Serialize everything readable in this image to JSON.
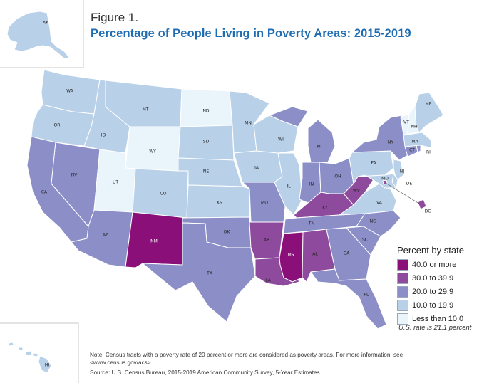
{
  "figure_label": "Figure 1.",
  "title": "Percentage of People Living in Poverty Areas: 2015-2019",
  "legend": {
    "title": "Percent by state",
    "classes": [
      {
        "label": "40.0 or more",
        "color": "#8a0f78"
      },
      {
        "label": "30.0 to  39.9",
        "color": "#8e4a9c"
      },
      {
        "label": "20.0 to  29.9",
        "color": "#8c8fc7"
      },
      {
        "label": "10.0 to  19.9",
        "color": "#b8d1e8"
      },
      {
        "label": "Less than 10.0",
        "color": "#eaf4fb"
      }
    ]
  },
  "us_rate": "U.S. rate is 21.1 percent",
  "note": "Note: Census tracts with a poverty rate of 20 percent or more are considered as poverty areas. For more information, see <www.census.gov/acs>.",
  "source": "Source: U.S. Census Bureau, 2015-2019 American Community Survey, 5-Year Estimates.",
  "states": {
    "WA": {
      "cls": 3
    },
    "OR": {
      "cls": 3
    },
    "CA": {
      "cls": 2
    },
    "NV": {
      "cls": 2
    },
    "ID": {
      "cls": 3
    },
    "MT": {
      "cls": 3
    },
    "WY": {
      "cls": 4
    },
    "UT": {
      "cls": 4
    },
    "AZ": {
      "cls": 2
    },
    "NM": {
      "cls": 0
    },
    "CO": {
      "cls": 3
    },
    "ND": {
      "cls": 4
    },
    "SD": {
      "cls": 3
    },
    "NE": {
      "cls": 3
    },
    "KS": {
      "cls": 3
    },
    "OK": {
      "cls": 2
    },
    "TX": {
      "cls": 2
    },
    "MN": {
      "cls": 3
    },
    "IA": {
      "cls": 3
    },
    "MO": {
      "cls": 2
    },
    "AR": {
      "cls": 1
    },
    "LA": {
      "cls": 1
    },
    "WI": {
      "cls": 3
    },
    "IL": {
      "cls": 3
    },
    "MI": {
      "cls": 2
    },
    "IN": {
      "cls": 2
    },
    "OH": {
      "cls": 2
    },
    "KY": {
      "cls": 1
    },
    "TN": {
      "cls": 2
    },
    "MS": {
      "cls": 0
    },
    "AL": {
      "cls": 1
    },
    "GA": {
      "cls": 2
    },
    "FL": {
      "cls": 2
    },
    "SC": {
      "cls": 2
    },
    "NC": {
      "cls": 2
    },
    "VA": {
      "cls": 3
    },
    "WV": {
      "cls": 1
    },
    "PA": {
      "cls": 3
    },
    "NY": {
      "cls": 2
    },
    "MD": {
      "cls": 3
    },
    "DE": {
      "cls": 3
    },
    "NJ": {
      "cls": 3
    },
    "CT": {
      "cls": 2
    },
    "RI": {
      "cls": 2
    },
    "MA": {
      "cls": 3
    },
    "VT": {
      "cls": 4
    },
    "NH": {
      "cls": 4
    },
    "ME": {
      "cls": 3
    },
    "DC": {
      "cls": 1
    },
    "AK": {
      "cls": 3
    },
    "HI": {
      "cls": 3
    }
  }
}
